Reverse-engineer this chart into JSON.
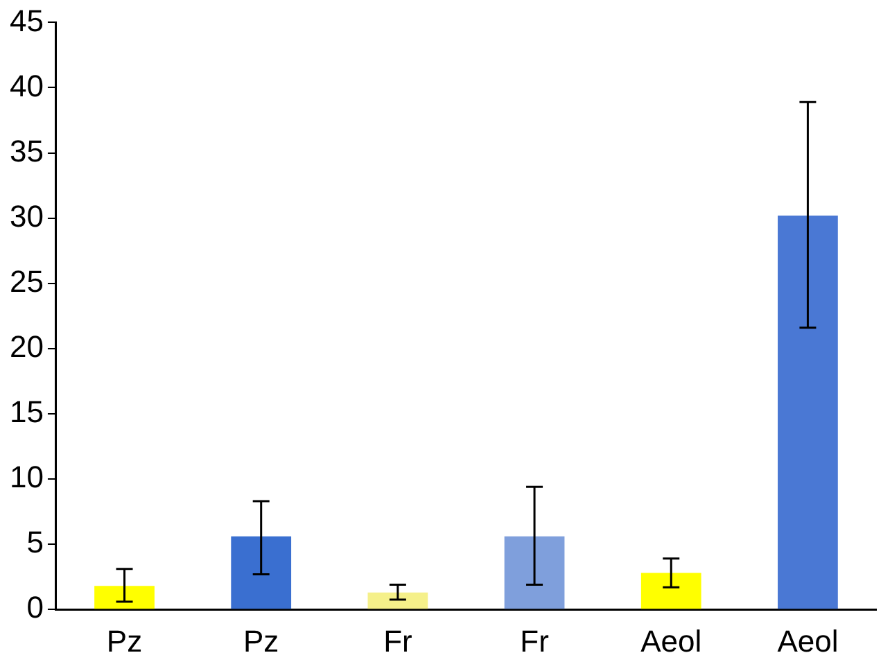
{
  "chart_data": {
    "type": "bar",
    "categories": [
      "Pz",
      "Pz",
      "Fr",
      "Fr",
      "Aeol",
      "Aeol"
    ],
    "values": [
      1.8,
      5.6,
      1.3,
      5.6,
      2.8,
      30.2
    ],
    "colors": [
      "#ffff00",
      "#3a6fd0",
      "#f5f08a",
      "#7f9fdc",
      "#ffff00",
      "#4a78d4"
    ],
    "errors": [
      [
        0.6,
        3.1
      ],
      [
        2.7,
        8.3
      ],
      [
        0.75,
        1.9
      ],
      [
        1.9,
        9.4
      ],
      [
        1.7,
        3.9
      ],
      [
        21.6,
        38.9
      ]
    ],
    "ylim": [
      0,
      45
    ],
    "yticks": [
      0,
      5,
      10,
      15,
      20,
      25,
      30,
      35,
      40,
      45
    ],
    "grid": false,
    "legend": false
  }
}
